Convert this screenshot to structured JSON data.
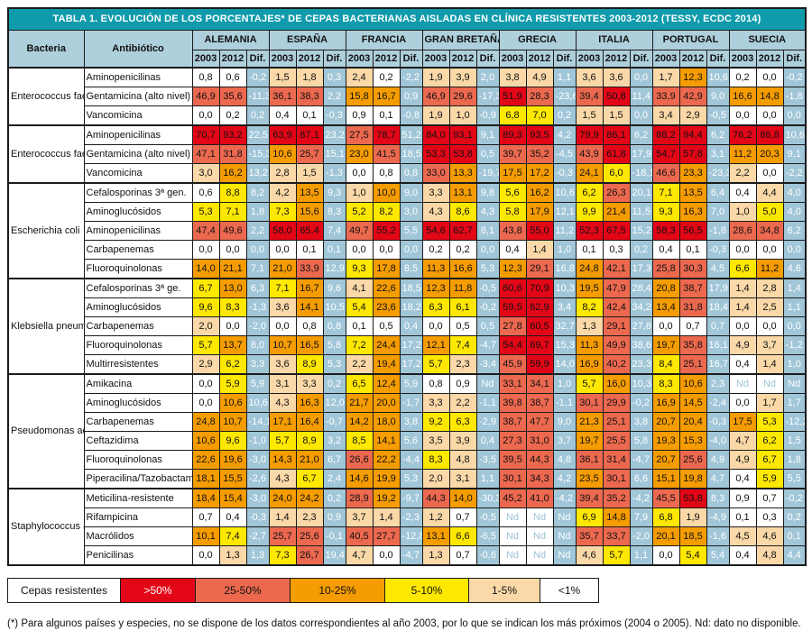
{
  "colors": {
    "b50": "#e30617",
    "b25": "#ec694f",
    "b10": "#f59c00",
    "b5": "#ffe800",
    "b1": "#fad8a8",
    "b0": "#ffffff",
    "dif_bg": "#a0c6d8",
    "dif_text": "#ffffff",
    "header_bg": "#aecfdc",
    "title_bg": "#0f9bab",
    "title_text": "#ffffff",
    "nd_text": "#9cc3d6",
    "border": "#1b1b1b"
  },
  "header": {
    "bacteria_label": "Bacteria",
    "antibiotic_label": "Antibiótico"
  },
  "chart_data": {
    "type": "table",
    "title": "TABLA 1. EVOLUCIÓN DE LOS PORCENTAJES* DE CEPAS BACTERIANAS AISLADAS EN CLÍNICA RESISTENTES 2003-2012 (TESSY, ECDC 2014)",
    "col_groups": [
      "ALEMANIA",
      "ESPAÑA",
      "FRANCIA",
      "GRAN BRETAÑA",
      "GRECIA",
      "ITALIA",
      "PORTUGAL",
      "SUECIA"
    ],
    "sub_cols": [
      "2003",
      "2012",
      "Dif."
    ],
    "row_groups": [
      {
        "bacteria": "Enterococcus faecalis",
        "rows": [
          {
            "antibiotic": "Aminopenicilinas",
            "values": [
              "0,8",
              "0,6",
              "-0,2",
              "1,5",
              "1,8",
              "0,3",
              "2,4",
              "0,2",
              "-2,2",
              "1,9",
              "3,9",
              "2,0",
              "3,8",
              "4,9",
              "1,1",
              "3,6",
              "3,6",
              "0,0",
              "1,7",
              "12,3",
              "10,6",
              "0,2",
              "0,0",
              "-0,2"
            ]
          },
          {
            "antibiotic": "Gentamicina (alto nivel)",
            "values": [
              "46,9",
              "35,6",
              "-11,3",
              "36,1",
              "38,3",
              "2,2",
              "15,8",
              "16,7",
              "0,9",
              "46,9",
              "29,6",
              "-17,3",
              "51,9",
              "28,3",
              "-23,6",
              "39,4",
              "50,8",
              "11,4",
              "33,9",
              "42,9",
              "9,0",
              "16,6",
              "14,8",
              "-1,8"
            ]
          },
          {
            "antibiotic": "Vancomicina",
            "values": [
              "0,0",
              "0,2",
              "0,2",
              "0,4",
              "0,1",
              "-0,3",
              "0,9",
              "0,1",
              "-0,8",
              "1,9",
              "1,0",
              "-0,9",
              "6,8",
              "7,0",
              "0,2",
              "1,5",
              "1,5",
              "0,0",
              "3,4",
              "2,9",
              "-0,5",
              "0,0",
              "0,0",
              "0,0"
            ]
          }
        ]
      },
      {
        "bacteria": "Enterococcus faecium",
        "rows": [
          {
            "antibiotic": "Aminopenicilinas",
            "values": [
              "70,7",
              "93,2",
              "22,5",
              "63,9",
              "87,1",
              "23,2",
              "27,5",
              "78,7",
              "51,2",
              "84,0",
              "93,1",
              "9,1",
              "89,3",
              "93,5",
              "4,2",
              "79,9",
              "86,1",
              "6,2",
              "88,2",
              "94,4",
              "6,2",
              "76,2",
              "86,8",
              "10,6"
            ]
          },
          {
            "antibiotic": "Gentamicina (alto nivel)",
            "values": [
              "47,1",
              "31,8",
              "-15,3",
              "10,6",
              "25,7",
              "15,1",
              "23,0",
              "41,5",
              "18,5",
              "53,3",
              "53,8",
              "0,5",
              "39,7",
              "35,2",
              "-4,5",
              "43,9",
              "61,8",
              "17,9",
              "54,7",
              "57,8",
              "3,1",
              "11,2",
              "20,3",
              "9,1"
            ]
          },
          {
            "antibiotic": "Vancomicina",
            "values": [
              "3,0",
              "16,2",
              "13,2",
              "2,8",
              "1,5",
              "-1,3",
              "0,0",
              "0,8",
              "0,8",
              "33,0",
              "13,3",
              "-19,7",
              "17,5",
              "17,2",
              "-0,3",
              "24,1",
              "6,0",
              "-18,1",
              "46,6",
              "23,3",
              "-23,3",
              "2,2",
              "0,0",
              "-2,2"
            ]
          }
        ]
      },
      {
        "bacteria": "Escherichia coli",
        "rows": [
          {
            "antibiotic": "Cefalosporinas 3ª gen.",
            "values": [
              "0,6",
              "8,8",
              "8,2",
              "4,2",
              "13,5",
              "9,3",
              "1,0",
              "10,0",
              "9,0",
              "3,3",
              "13,1",
              "9,8",
              "5,6",
              "16,2",
              "10,6",
              "6,2",
              "26,3",
              "20,1",
              "7,1",
              "13,5",
              "6,4",
              "0,4",
              "4,4",
              "4,0"
            ]
          },
          {
            "antibiotic": "Aminoglucósidos",
            "values": [
              "5,3",
              "7,1",
              "1,8",
              "7,3",
              "15,6",
              "8,3",
              "5,2",
              "8,2",
              "3,0",
              "4,3",
              "8,6",
              "4,3",
              "5,8",
              "17,9",
              "12,1",
              "9,9",
              "21,4",
              "11,5",
              "9,3",
              "16,3",
              "7,0",
              "1,0",
              "5,0",
              "4,0"
            ]
          },
          {
            "antibiotic": "Aminopenicilinas",
            "values": [
              "47,4",
              "49,6",
              "2,2",
              "58,0",
              "65,4",
              "7,4",
              "49,7",
              "55,2",
              "5,5",
              "54,6",
              "62,7",
              "8,1",
              "43,8",
              "55,0",
              "11,2",
              "52,3",
              "67,5",
              "15,2",
              "58,3",
              "56,5",
              "-1,8",
              "28,6",
              "34,8",
              "6,2"
            ]
          },
          {
            "antibiotic": "Carbapenemas",
            "values": [
              "0,0",
              "0,0",
              "0,0",
              "0,0",
              "0,1",
              "0,1",
              "0,0",
              "0,0",
              "0,0",
              "0,2",
              "0,2",
              "0,0",
              "0,4",
              "1,4",
              "1,0",
              "0,1",
              "0,3",
              "0,2",
              "0,4",
              "0,1",
              "-0,3",
              "0,0",
              "0,0",
              "0,0"
            ]
          },
          {
            "antibiotic": "Fluoroquinolonas",
            "values": [
              "14,0",
              "21,1",
              "7,1",
              "21,0",
              "33,9",
              "12,9",
              "9,3",
              "17,8",
              "8,5",
              "11,3",
              "16,6",
              "5,3",
              "12,3",
              "29,1",
              "16,8",
              "24,8",
              "42,1",
              "17,3",
              "25,8",
              "30,3",
              "4,5",
              "6,6",
              "11,2",
              "4,6"
            ]
          }
        ]
      },
      {
        "bacteria": "Klebsiella pneumoniae",
        "rows": [
          {
            "antibiotic": "Cefalosporinas 3ª ge.",
            "values": [
              "6,7",
              "13,0",
              "6,3",
              "7,1",
              "16,7",
              "9,6",
              "4,1",
              "22,6",
              "18,5",
              "12,3",
              "11,8",
              "-0,5",
              "60,6",
              "70,9",
              "10,3",
              "19,5",
              "47,9",
              "28,4",
              "20,8",
              "38,7",
              "17,9",
              "1,4",
              "2,8",
              "1,4"
            ]
          },
          {
            "antibiotic": "Aminoglucósidos",
            "values": [
              "9,6",
              "8,3",
              "-1,3",
              "3,6",
              "14,1",
              "10,5",
              "5,4",
              "23,6",
              "18,2",
              "6,3",
              "6,1",
              "-0,2",
              "59,5",
              "62,9",
              "3,4",
              "8,2",
              "42,4",
              "34,2",
              "13,4",
              "31,8",
              "18,4",
              "1,4",
              "2,5",
              "1,1"
            ]
          },
          {
            "antibiotic": "Carbapenemas",
            "values": [
              "2,0",
              "0,0",
              "-2,0",
              "0,0",
              "0,8",
              "0,8",
              "0,1",
              "0,5",
              "0,4",
              "0,0",
              "0,5",
              "0,5",
              "27,8",
              "60,5",
              "32,7",
              "1,3",
              "29,1",
              "27,8",
              "0,0",
              "0,7",
              "0,7",
              "0,0",
              "0,0",
              "0,0"
            ]
          },
          {
            "antibiotic": "Fluoroquinolonas",
            "values": [
              "5,7",
              "13,7",
              "8,0",
              "10,7",
              "16,5",
              "5,8",
              "7,2",
              "24,4",
              "17,2",
              "12,1",
              "7,4",
              "-4,7",
              "54,4",
              "69,7",
              "15,3",
              "11,3",
              "49,9",
              "38,6",
              "19,7",
              "35,8",
              "16,1",
              "4,9",
              "3,7",
              "-1,2"
            ]
          },
          {
            "antibiotic": "Multirresistentes",
            "values": [
              "2,9",
              "6,2",
              "3,3",
              "3,6",
              "8,9",
              "5,3",
              "2,2",
              "19,4",
              "17,2",
              "5,7",
              "2,3",
              "-3,4",
              "45,9",
              "59,9",
              "14,0",
              "16,9",
              "40,2",
              "23,3",
              "8,4",
              "25,1",
              "16,7",
              "0,4",
              "1,4",
              "1,0"
            ]
          }
        ]
      },
      {
        "bacteria": "Pseudomonas aeruginosa",
        "rows": [
          {
            "antibiotic": "Amikacina",
            "values": [
              "0,0",
              "5,9",
              "5,9",
              "3,1",
              "3,3",
              "0,2",
              "6,5",
              "12,4",
              "5,9",
              "0,8",
              "0,9",
              "Nd",
              "33,1",
              "34,1",
              "1,0",
              "5,7",
              "16,0",
              "10,3",
              "8,3",
              "10,6",
              "2,3",
              "Nd",
              "Nd",
              "Nd"
            ]
          },
          {
            "antibiotic": "Aminoglucósidos",
            "values": [
              "0,0",
              "10,6",
              "10,6",
              "4,3",
              "16,3",
              "12,0",
              "21,7",
              "20,0",
              "-1,7",
              "3,3",
              "2,2",
              "-1,1",
              "39,8",
              "38,7",
              "-1,1",
              "30,1",
              "29,9",
              "-0,2",
              "16,9",
              "14,5",
              "-2,4",
              "0,0",
              "1,7",
              "1,7"
            ]
          },
          {
            "antibiotic": "Carbapenemas",
            "values": [
              "24,8",
              "10,7",
              "-14,1",
              "17,1",
              "16,4",
              "-0,7",
              "14,2",
              "18,0",
              "3,8",
              "9,2",
              "6,3",
              "-2,9",
              "38,7",
              "47,7",
              "9,0",
              "21,3",
              "25,1",
              "3,8",
              "20,7",
              "20,4",
              "-0,3",
              "17,5",
              "5,3",
              "-12,2"
            ]
          },
          {
            "antibiotic": "Ceftazidima",
            "values": [
              "10,6",
              "9,6",
              "-1,0",
              "5,7",
              "8,9",
              "3,2",
              "8,5",
              "14,1",
              "5,6",
              "3,5",
              "3,9",
              "0,4",
              "27,3",
              "31,0",
              "3,7",
              "19,7",
              "25,5",
              "5,8",
              "19,3",
              "15,3",
              "-4,0",
              "4,7",
              "6,2",
              "1,5"
            ]
          },
          {
            "antibiotic": "Fluoroquinolonas",
            "values": [
              "22,6",
              "19,6",
              "-3,0",
              "14,3",
              "21,0",
              "6,7",
              "26,6",
              "22,2",
              "-4,4",
              "8,3",
              "4,8",
              "-3,5",
              "39,5",
              "44,3",
              "4,8",
              "36,1",
              "31,4",
              "-4,7",
              "20,7",
              "25,6",
              "4,9",
              "4,9",
              "6,7",
              "1,8"
            ]
          },
          {
            "antibiotic": "Piperacilina/Tazobactam",
            "values": [
              "18,1",
              "15,5",
              "-2,6",
              "4,3",
              "6,7",
              "2,4",
              "14,6",
              "19,9",
              "5,3",
              "2,0",
              "3,1",
              "1,1",
              "30,1",
              "34,3",
              "4,2",
              "23,5",
              "30,1",
              "6,6",
              "15,1",
              "19,8",
              "4,7",
              "0,4",
              "5,9",
              "5,5"
            ]
          }
        ]
      },
      {
        "bacteria": "Staphylococcus aureus",
        "rows": [
          {
            "antibiotic": "Meticilina-resistente",
            "values": [
              "18,4",
              "15,4",
              "-3,0",
              "24,0",
              "24,2",
              "0,2",
              "28,9",
              "19,2",
              "-9,7",
              "44,3",
              "14,0",
              "-30,3",
              "45,2",
              "41,0",
              "-4,2",
              "39,4",
              "35,2",
              "-4,2",
              "45,5",
              "53,8",
              "8,3",
              "0,9",
              "0,7",
              "-0,2"
            ]
          },
          {
            "antibiotic": "Rifampicina",
            "values": [
              "0,7",
              "0,4",
              "-0,3",
              "1,4",
              "2,3",
              "0,9",
              "3,7",
              "1,4",
              "-2,3",
              "1,2",
              "0,7",
              "-0,5",
              "Nd",
              "Nd",
              "Nd",
              "6,9",
              "14,8",
              "7,9",
              "6,8",
              "1,9",
              "-4,9",
              "0,1",
              "0,3",
              "0,2"
            ]
          },
          {
            "antibiotic": "Macrólidos",
            "values": [
              "10,1",
              "7,4",
              "-2,7",
              "25,7",
              "25,6",
              "-0,1",
              "40,5",
              "27,7",
              "-12,8",
              "13,1",
              "6,6",
              "-6,5",
              "Nd",
              "Nd",
              "Nd",
              "35,7",
              "33,7",
              "-2,0",
              "20,1",
              "18,5",
              "-1,6",
              "4,5",
              "4,6",
              "0,1"
            ]
          },
          {
            "antibiotic": "Penicilinas",
            "values": [
              "0,0",
              "1,3",
              "1,3",
              "7,3",
              "26,7",
              "19,4",
              "4,7",
              "0,0",
              "-4,7",
              "1,3",
              "0,7",
              "-0,6",
              "Nd",
              "Nd",
              "Nd",
              "4,6",
              "5,7",
              "1,1",
              "0,0",
              "5,4",
              "5,4",
              "0,4",
              "4,8",
              "4,4"
            ]
          }
        ]
      }
    ]
  },
  "legend": {
    "label": "Cepas resistentes",
    "items": [
      {
        "label": ">50%",
        "band": "b50"
      },
      {
        "label": "25-50%",
        "band": "b25"
      },
      {
        "label": "10-25%",
        "band": "b10"
      },
      {
        "label": "5-10%",
        "band": "b5"
      },
      {
        "label": "1-5%",
        "band": "b1"
      },
      {
        "label": "<1%",
        "band": "b0"
      }
    ]
  },
  "footnote": "(*) Para algunos países y especies, no se dispone de los datos correspondientes al año 2003, por lo que se indican los más próximos (2004 o 2005).  Nd: dato no disponible."
}
